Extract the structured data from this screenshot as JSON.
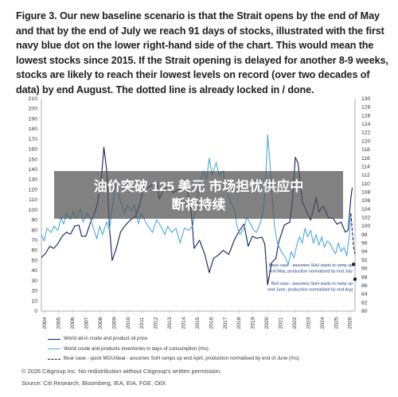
{
  "title": "Figure 3. Our new baseline scenario is that the Strait opens by the end of May and that by the end of July we reach 91 days of stocks, illustrated with the first navy blue dot on the lower right-hand side of the chart. This would mean the lowest stocks since 2015. If the Strait opening is delayed for another 8-9 weeks, stocks are likely to reach their lowest levels on record (over two decades of data) by end August. The dotted line is already locked in / done.",
  "banner": {
    "line1": "油价突破 125 美元 市场担忧供应中",
    "line2": "断将持续"
  },
  "legend": [
    {
      "label": "World all-in crude and product oil price",
      "color": "#0d1f5c",
      "dash": "solid"
    },
    {
      "label": "World crude and products inventories in days of consumption (rhs)",
      "color": "#4aa9df",
      "dash": "solid"
    },
    {
      "label": "Bear case - quick MOU/deal - assumes SoH ramps up end April, production normalised by end of June (rhs)",
      "color": "#0d1f5c",
      "dash": "dashed"
    }
  ],
  "footer": {
    "copyright": "© 2026 Citigroup Inc. No redistribution without Citigroup's written permission.",
    "source": "Source: Citi Research, Bloomberg, IEA, EIA, FGE, OilX"
  },
  "annotations": [
    {
      "lines": [
        "Base case - assumes SoH starts to ramp up",
        "end May, production normalised by end July"
      ]
    },
    {
      "lines": [
        "Bull case - assumes SoH starts to ramp up",
        "end June, production normalised by end Aug"
      ]
    }
  ],
  "chart_data": {
    "type": "line",
    "x_ticks": [
      "2004",
      "2005",
      "2006",
      "2007",
      "2008",
      "2009",
      "2010",
      "2011",
      "2012",
      "2013",
      "2014",
      "2015",
      "2016",
      "2017",
      "2018",
      "2019",
      "2020",
      "2021",
      "2022",
      "2023",
      "2024",
      "2025",
      "2026"
    ],
    "y_left_ticks": [
      0,
      10,
      20,
      30,
      40,
      50,
      60,
      70,
      80,
      90,
      100,
      110,
      120,
      130,
      140,
      150,
      160,
      170,
      180,
      190,
      200,
      210
    ],
    "y_right_ticks": [
      80,
      82,
      84,
      86,
      88,
      90,
      92,
      94,
      96,
      98,
      100,
      102,
      104,
      106,
      108,
      110,
      112,
      114,
      116,
      118,
      120,
      122,
      124,
      126,
      128,
      130
    ],
    "ylim_left": [
      0,
      210
    ],
    "ylim_right": [
      80,
      130
    ],
    "xlim": [
      2004,
      2026.6
    ],
    "series": [
      {
        "name": "World all-in crude and product oil price",
        "axis": "left",
        "color": "#0d1f5c",
        "points": [
          [
            2004.0,
            53
          ],
          [
            2004.3,
            57
          ],
          [
            2004.6,
            64
          ],
          [
            2004.9,
            62
          ],
          [
            2005.2,
            67
          ],
          [
            2005.5,
            74
          ],
          [
            2005.8,
            78
          ],
          [
            2006.1,
            76
          ],
          [
            2006.4,
            84
          ],
          [
            2006.7,
            85
          ],
          [
            2006.9,
            74
          ],
          [
            2007.2,
            74
          ],
          [
            2007.5,
            86
          ],
          [
            2007.8,
            96
          ],
          [
            2008.0,
            104
          ],
          [
            2008.3,
            128
          ],
          [
            2008.5,
            162
          ],
          [
            2008.7,
            140
          ],
          [
            2008.9,
            84
          ],
          [
            2009.1,
            50
          ],
          [
            2009.4,
            62
          ],
          [
            2009.7,
            78
          ],
          [
            2010.0,
            84
          ],
          [
            2010.4,
            90
          ],
          [
            2010.8,
            94
          ],
          [
            2011.1,
            106
          ],
          [
            2011.4,
            124
          ],
          [
            2011.7,
            122
          ],
          [
            2012.0,
            125
          ],
          [
            2012.3,
            128
          ],
          [
            2012.5,
            111
          ],
          [
            2012.8,
            120
          ],
          [
            2013.1,
            122
          ],
          [
            2013.5,
            117
          ],
          [
            2013.9,
            120
          ],
          [
            2014.2,
            120
          ],
          [
            2014.5,
            121
          ],
          [
            2014.8,
            98
          ],
          [
            2015.0,
            62
          ],
          [
            2015.4,
            70
          ],
          [
            2015.8,
            55
          ],
          [
            2016.1,
            38
          ],
          [
            2016.4,
            52
          ],
          [
            2016.8,
            56
          ],
          [
            2017.1,
            60
          ],
          [
            2017.5,
            56
          ],
          [
            2017.9,
            70
          ],
          [
            2018.2,
            78
          ],
          [
            2018.6,
            86
          ],
          [
            2018.9,
            64
          ],
          [
            2019.2,
            74
          ],
          [
            2019.5,
            72
          ],
          [
            2019.9,
            73
          ],
          [
            2020.1,
            66
          ],
          [
            2020.3,
            26
          ],
          [
            2020.6,
            48
          ],
          [
            2020.9,
            52
          ],
          [
            2021.1,
            68
          ],
          [
            2021.5,
            85
          ],
          [
            2021.9,
            88
          ],
          [
            2022.1,
            110
          ],
          [
            2022.3,
            152
          ],
          [
            2022.5,
            146
          ],
          [
            2022.8,
            108
          ],
          [
            2023.0,
            102
          ],
          [
            2023.4,
            90
          ],
          [
            2023.8,
            112
          ],
          [
            2024.0,
            98
          ],
          [
            2024.3,
            104
          ],
          [
            2024.7,
            92
          ],
          [
            2025.0,
            92
          ],
          [
            2025.3,
            86
          ],
          [
            2025.6,
            88
          ],
          [
            2025.9,
            78
          ],
          [
            2026.1,
            80
          ],
          [
            2026.3,
            112
          ],
          [
            2026.4,
            122
          ]
        ]
      },
      {
        "name": "World crude and products inventories in days of consumption (rhs)",
        "axis": "right",
        "color": "#4aa9df",
        "points": [
          [
            2004.0,
            98
          ],
          [
            2004.2,
            96.5
          ],
          [
            2004.4,
            99.5
          ],
          [
            2004.7,
            98.5
          ],
          [
            2004.9,
            100
          ],
          [
            2005.2,
            99
          ],
          [
            2005.4,
            102
          ],
          [
            2005.6,
            100.5
          ],
          [
            2005.8,
            103
          ],
          [
            2006.1,
            101.5
          ],
          [
            2006.3,
            103.5
          ],
          [
            2006.5,
            101.8
          ],
          [
            2006.8,
            104
          ],
          [
            2007.0,
            101
          ],
          [
            2007.3,
            103
          ],
          [
            2007.5,
            102
          ],
          [
            2007.8,
            99
          ],
          [
            2008.0,
            97
          ],
          [
            2008.2,
            100
          ],
          [
            2008.4,
            98
          ],
          [
            2008.7,
            101
          ],
          [
            2008.9,
            99
          ],
          [
            2009.1,
            104
          ],
          [
            2009.3,
            110
          ],
          [
            2009.5,
            108
          ],
          [
            2009.8,
            105
          ],
          [
            2010.0,
            103
          ],
          [
            2010.2,
            105
          ],
          [
            2010.5,
            103.5
          ],
          [
            2010.7,
            105
          ],
          [
            2011.0,
            100.5
          ],
          [
            2011.2,
            103
          ],
          [
            2011.5,
            101
          ],
          [
            2011.7,
            100
          ],
          [
            2012.0,
            98.5
          ],
          [
            2012.3,
            101.5
          ],
          [
            2012.6,
            100
          ],
          [
            2012.9,
            98
          ],
          [
            2013.1,
            100
          ],
          [
            2013.4,
            98.5
          ],
          [
            2013.7,
            99.5
          ],
          [
            2014.0,
            96
          ],
          [
            2014.3,
            99.5
          ],
          [
            2014.6,
            99
          ],
          [
            2014.9,
            100
          ],
          [
            2015.1,
            104
          ],
          [
            2015.4,
            110
          ],
          [
            2015.7,
            113
          ],
          [
            2015.9,
            111
          ],
          [
            2016.1,
            116
          ],
          [
            2016.3,
            112
          ],
          [
            2016.6,
            115
          ],
          [
            2016.8,
            112
          ],
          [
            2017.1,
            113
          ],
          [
            2017.3,
            109
          ],
          [
            2017.6,
            106
          ],
          [
            2017.9,
            104
          ],
          [
            2018.1,
            100
          ],
          [
            2018.3,
            98
          ],
          [
            2018.6,
            99.5
          ],
          [
            2018.8,
            102
          ],
          [
            2019.0,
            101
          ],
          [
            2019.3,
            99
          ],
          [
            2019.5,
            98.5
          ],
          [
            2019.8,
            101
          ],
          [
            2020.0,
            104
          ],
          [
            2020.15,
            110
          ],
          [
            2020.3,
            121.5
          ],
          [
            2020.45,
            116
          ],
          [
            2020.6,
            108
          ],
          [
            2020.8,
            100
          ],
          [
            2021.0,
            96
          ],
          [
            2021.3,
            94
          ],
          [
            2021.6,
            92.5
          ],
          [
            2021.8,
            91
          ],
          [
            2022.0,
            94
          ],
          [
            2022.2,
            92.5
          ],
          [
            2022.4,
            95.5
          ],
          [
            2022.6,
            97.5
          ],
          [
            2022.8,
            96
          ],
          [
            2023.0,
            99.5
          ],
          [
            2023.2,
            97.5
          ],
          [
            2023.4,
            99
          ],
          [
            2023.6,
            96
          ],
          [
            2023.8,
            98
          ],
          [
            2024.0,
            95.5
          ],
          [
            2024.2,
            97.5
          ],
          [
            2024.4,
            95
          ],
          [
            2024.6,
            96.5
          ],
          [
            2024.8,
            96
          ],
          [
            2025.0,
            94.5
          ],
          [
            2025.2,
            93.5
          ],
          [
            2025.4,
            96
          ],
          [
            2025.6,
            94
          ],
          [
            2025.8,
            95
          ],
          [
            2026.0,
            93
          ],
          [
            2026.2,
            98
          ],
          [
            2026.3,
            103
          ]
        ]
      },
      {
        "name": "Bear case - quick MOU/deal - assumes SoH ramps up end April, production normalised by end of June (rhs)",
        "axis": "right",
        "color": "#0d1f5c",
        "dash": "4,2",
        "points": [
          [
            2026.3,
            103
          ],
          [
            2026.4,
            99
          ],
          [
            2026.5,
            95
          ],
          [
            2026.6,
            93.5
          ]
        ]
      },
      {
        "name": "Base case",
        "axis": "right",
        "color": "#0d1f5c",
        "marker": "dot",
        "points": [
          [
            2026.5,
            91
          ]
        ]
      },
      {
        "name": "Bull case",
        "axis": "right",
        "color": "#0d1f5c",
        "marker": "dot",
        "points": [
          [
            2026.6,
            87.5
          ]
        ]
      }
    ]
  }
}
